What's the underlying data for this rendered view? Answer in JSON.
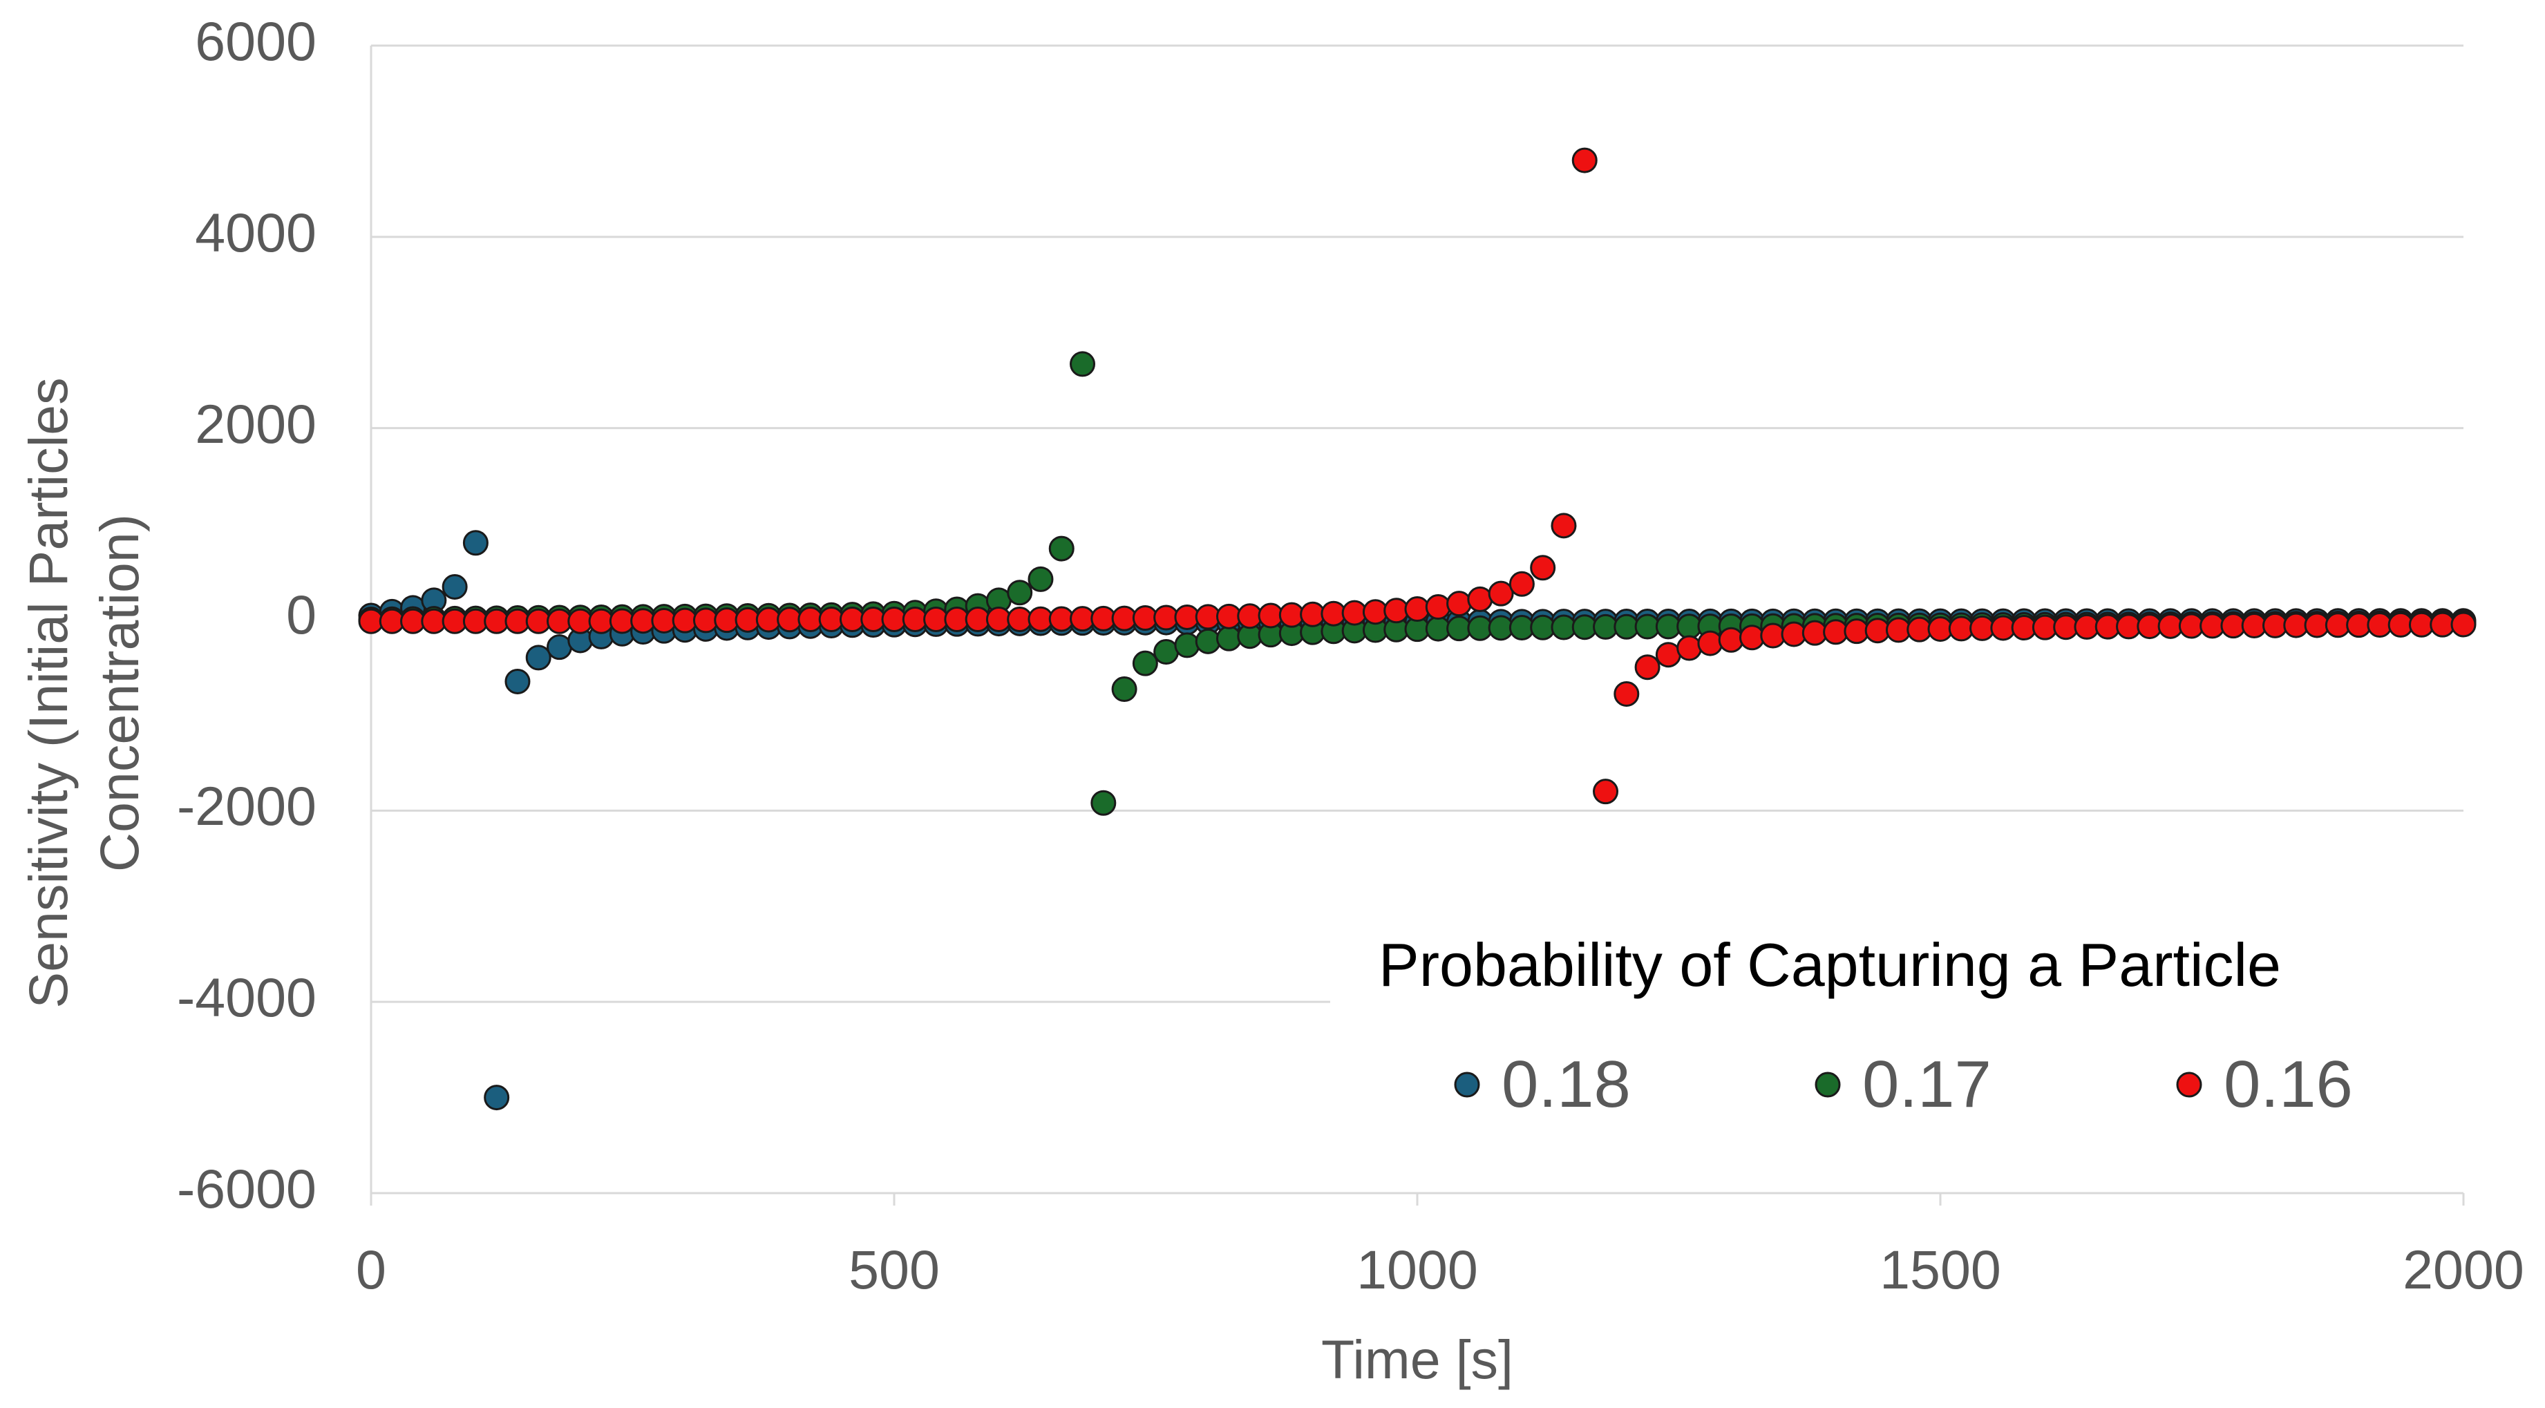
{
  "chart_data": {
    "type": "scatter",
    "xlabel": "Time [s]",
    "ylabel_lines": [
      "Sensitivity (Initial Particles",
      "Concentration)"
    ],
    "xlim": [
      0,
      2000
    ],
    "ylim": [
      -6000,
      6000
    ],
    "x_ticks": [
      "0",
      "500",
      "1000",
      "1500",
      "2000"
    ],
    "y_ticks": [
      "6000",
      "4000",
      "2000",
      "0",
      "-2000",
      "-4000",
      "-6000"
    ],
    "grid": "horizontal",
    "legend": {
      "title": "Probability of Capturing a Particle",
      "placement": "bottom-right"
    },
    "series": [
      {
        "name": "0.18",
        "color": "#1b5e7e",
        "x": [
          0,
          20,
          40,
          60,
          80,
          100,
          120,
          140,
          160,
          180,
          200,
          220,
          240,
          260,
          280,
          300,
          320,
          340,
          360,
          380,
          400,
          420,
          440,
          460,
          480,
          500,
          520,
          540,
          560,
          580,
          600,
          620,
          640,
          660,
          680,
          700,
          720,
          740,
          760,
          780,
          800,
          820,
          840,
          860,
          880,
          900,
          920,
          940,
          960,
          980,
          1000,
          1020,
          1040,
          1060,
          1080,
          1100,
          1120,
          1140,
          1160,
          1180,
          1200,
          1220,
          1240,
          1260,
          1280,
          1300,
          1320,
          1340,
          1360,
          1380,
          1400,
          1420,
          1440,
          1460,
          1480,
          1500,
          1520,
          1540,
          1560,
          1580,
          1600,
          1620,
          1640,
          1660,
          1680,
          1700,
          1720,
          1740,
          1760,
          1780,
          1800,
          1820,
          1840,
          1860,
          1880,
          1900,
          1920,
          1940,
          1960,
          1980,
          2000
        ],
        "y": [
          40,
          80,
          120,
          200,
          340,
          800,
          -5000,
          -650,
          -400,
          -290,
          -220,
          -180,
          -150,
          -130,
          -120,
          -110,
          -100,
          -90,
          -85,
          -80,
          -75,
          -70,
          -65,
          -60,
          -58,
          -55,
          -52,
          -50,
          -48,
          -46,
          -44,
          -42,
          -40,
          -38,
          -37,
          -36,
          -35,
          -34,
          -33,
          -32,
          -31,
          -30,
          -30,
          -29,
          -29,
          -28,
          -28,
          -27,
          -27,
          -26,
          -26,
          -25,
          -25,
          -25,
          -24,
          -24,
          -24,
          -23,
          -23,
          -23,
          -22,
          -22,
          -22,
          -22,
          -21,
          -21,
          -21,
          -21,
          -20,
          -20,
          -20,
          -20,
          -20,
          -19,
          -19,
          -19,
          -19,
          -19,
          -19,
          -18,
          -18,
          -18,
          -18,
          -18,
          -18,
          -18,
          -17,
          -17,
          -17,
          -17,
          -17,
          -17,
          -17,
          -17,
          -16,
          -16,
          -16,
          -16,
          -16,
          -16,
          -16
        ]
      },
      {
        "name": "0.17",
        "color": "#1a6b2a",
        "x": [
          0,
          20,
          40,
          60,
          80,
          100,
          120,
          140,
          160,
          180,
          200,
          220,
          240,
          260,
          280,
          300,
          320,
          340,
          360,
          380,
          400,
          420,
          440,
          460,
          480,
          500,
          520,
          540,
          560,
          580,
          600,
          620,
          640,
          660,
          680,
          700,
          720,
          740,
          760,
          780,
          800,
          820,
          840,
          860,
          880,
          900,
          920,
          940,
          960,
          980,
          1000,
          1020,
          1040,
          1060,
          1080,
          1100,
          1120,
          1140,
          1160,
          1180,
          1200,
          1220,
          1240,
          1260,
          1280,
          1300,
          1320,
          1340,
          1360,
          1380,
          1400,
          1420,
          1440,
          1460,
          1480,
          1500,
          1520,
          1540,
          1560,
          1580,
          1600,
          1620,
          1640,
          1660,
          1680,
          1700,
          1720,
          1740,
          1760,
          1780,
          1800,
          1820,
          1840,
          1860,
          1880,
          1900,
          1920,
          1940,
          1960,
          1980,
          2000
        ],
        "y": [
          0,
          2,
          4,
          6,
          8,
          10,
          12,
          14,
          16,
          18,
          20,
          22,
          24,
          26,
          28,
          30,
          32,
          34,
          36,
          38,
          40,
          42,
          45,
          50,
          55,
          60,
          70,
          85,
          105,
          140,
          200,
          280,
          420,
          740,
          2670,
          -1920,
          -730,
          -460,
          -340,
          -270,
          -230,
          -200,
          -175,
          -160,
          -145,
          -135,
          -125,
          -118,
          -112,
          -107,
          -102,
          -98,
          -95,
          -92,
          -89,
          -87,
          -85,
          -83,
          -81,
          -79,
          -78,
          -76,
          -75,
          -74,
          -73,
          -72,
          -71,
          -70,
          -69,
          -68,
          -67,
          -66,
          -65,
          -64,
          -63,
          -62,
          -61,
          -60,
          -59,
          -58,
          -57,
          -56,
          -55,
          -54,
          -53,
          -52,
          -51,
          -50,
          -49,
          -48,
          -47,
          -46,
          -45,
          -44,
          -43,
          -42,
          -41,
          -40,
          -39,
          -38,
          -37
        ]
      },
      {
        "name": "0.16",
        "color": "#ee1111",
        "x": [
          0,
          20,
          40,
          60,
          80,
          100,
          120,
          140,
          160,
          180,
          200,
          220,
          240,
          260,
          280,
          300,
          320,
          340,
          360,
          380,
          400,
          420,
          440,
          460,
          480,
          500,
          520,
          540,
          560,
          580,
          600,
          620,
          640,
          660,
          680,
          700,
          720,
          740,
          760,
          780,
          800,
          820,
          840,
          860,
          880,
          900,
          920,
          940,
          960,
          980,
          1000,
          1020,
          1040,
          1060,
          1080,
          1100,
          1120,
          1140,
          1160,
          1180,
          1200,
          1220,
          1240,
          1260,
          1280,
          1300,
          1320,
          1340,
          1360,
          1380,
          1400,
          1420,
          1440,
          1460,
          1480,
          1500,
          1520,
          1540,
          1560,
          1580,
          1600,
          1620,
          1640,
          1660,
          1680,
          1700,
          1720,
          1740,
          1760,
          1780,
          1800,
          1820,
          1840,
          1860,
          1880,
          1900,
          1920,
          1940,
          1960,
          1980,
          2000
        ],
        "y": [
          -20,
          -20,
          -20,
          -20,
          -20,
          -20,
          -20,
          -20,
          -20,
          -20,
          -20,
          -20,
          -18,
          -16,
          -14,
          -12,
          -10,
          -8,
          -6,
          -4,
          -2,
          0,
          0,
          0,
          0,
          0,
          0,
          0,
          0,
          0,
          0,
          0,
          2,
          4,
          6,
          8,
          10,
          14,
          18,
          22,
          26,
          30,
          34,
          40,
          46,
          52,
          60,
          68,
          78,
          92,
          108,
          130,
          165,
          210,
          270,
          370,
          540,
          980,
          4800,
          -1800,
          -780,
          -500,
          -370,
          -300,
          -250,
          -215,
          -190,
          -170,
          -155,
          -142,
          -132,
          -124,
          -117,
          -111,
          -106,
          -101,
          -97,
          -93,
          -90,
          -87,
          -84,
          -81,
          -79,
          -77,
          -75,
          -73,
          -71,
          -69,
          -68,
          -66,
          -65,
          -64,
          -62,
          -61,
          -60,
          -59,
          -58,
          -57,
          -56,
          -55,
          -54
        ]
      }
    ]
  }
}
